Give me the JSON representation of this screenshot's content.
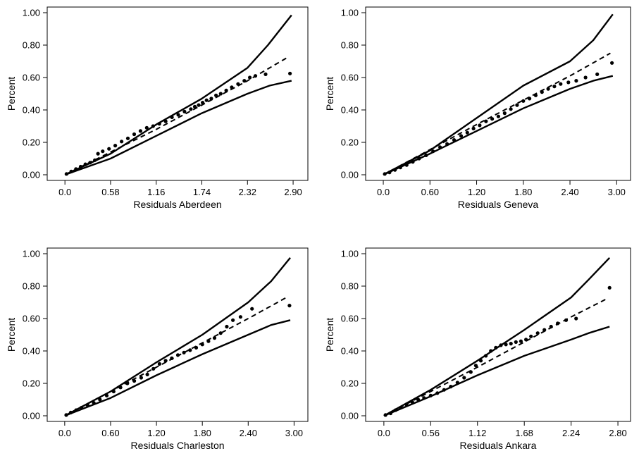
{
  "colors": {
    "ink": "#000000",
    "background": "#ffffff"
  },
  "chart_data": [
    {
      "type": "scatter",
      "xlabel": "Residuals Aberdeen",
      "ylabel": "Percent",
      "xlim": [
        -0.1,
        2.98
      ],
      "ylim": [
        0,
        1
      ],
      "xticks": [
        "0.0",
        "0.58",
        "1.16",
        "1.74",
        "2.32",
        "2.90"
      ],
      "yticks": [
        "0.00",
        "0.20",
        "0.40",
        "0.60",
        "0.80",
        "1.00"
      ],
      "upper_band": {
        "x": [
          0,
          0.58,
          1.16,
          1.74,
          2.32,
          2.58,
          2.88
        ],
        "y": [
          0,
          0.13,
          0.31,
          0.47,
          0.66,
          0.8,
          0.985
        ]
      },
      "lower_band": {
        "x": [
          0,
          0.58,
          1.16,
          1.74,
          2.32,
          2.6,
          2.88
        ],
        "y": [
          0,
          0.1,
          0.24,
          0.38,
          0.5,
          0.55,
          0.58
        ]
      },
      "fit_line": {
        "x": [
          0,
          1.16,
          2.32,
          2.85
        ],
        "y": [
          0,
          0.28,
          0.58,
          0.73
        ]
      },
      "points": {
        "x": [
          0.02,
          0.08,
          0.14,
          0.2,
          0.26,
          0.32,
          0.38,
          0.42,
          0.48,
          0.56,
          0.64,
          0.72,
          0.8,
          0.88,
          0.96,
          1.04,
          1.12,
          1.2,
          1.28,
          1.36,
          1.44,
          1.52,
          1.6,
          1.65,
          1.7,
          1.75,
          1.8,
          1.86,
          1.92,
          1.98,
          2.05,
          2.12,
          2.2,
          2.28,
          2.35,
          2.42,
          2.55,
          2.86
        ],
        "y": [
          0.005,
          0.02,
          0.035,
          0.05,
          0.065,
          0.075,
          0.09,
          0.13,
          0.145,
          0.16,
          0.18,
          0.205,
          0.225,
          0.25,
          0.27,
          0.29,
          0.3,
          0.315,
          0.33,
          0.355,
          0.37,
          0.39,
          0.405,
          0.42,
          0.43,
          0.445,
          0.46,
          0.47,
          0.49,
          0.5,
          0.52,
          0.54,
          0.56,
          0.58,
          0.6,
          0.61,
          0.62,
          0.625
        ]
      }
    },
    {
      "type": "scatter",
      "xlabel": "Residuals Geneva",
      "ylabel": "Percent",
      "xlim": [
        -0.1,
        3.07
      ],
      "ylim": [
        0,
        1
      ],
      "xticks": [
        "0.0",
        "0.60",
        "1.20",
        "1.80",
        "2.40",
        "3.00"
      ],
      "yticks": [
        "0.00",
        "0.20",
        "0.40",
        "0.60",
        "0.80",
        "1.00"
      ],
      "upper_band": {
        "x": [
          0,
          0.6,
          1.2,
          1.8,
          2.4,
          2.7,
          2.95
        ],
        "y": [
          0,
          0.15,
          0.35,
          0.55,
          0.7,
          0.83,
          0.99
        ]
      },
      "lower_band": {
        "x": [
          0,
          0.6,
          1.2,
          1.8,
          2.4,
          2.7,
          2.95
        ],
        "y": [
          0,
          0.13,
          0.27,
          0.41,
          0.53,
          0.58,
          0.61
        ]
      },
      "fit_line": {
        "x": [
          0,
          1.2,
          2.4,
          2.92
        ],
        "y": [
          0,
          0.31,
          0.61,
          0.75
        ]
      },
      "points": {
        "x": [
          0.02,
          0.08,
          0.15,
          0.22,
          0.3,
          0.38,
          0.46,
          0.55,
          0.64,
          0.73,
          0.82,
          0.91,
          1.0,
          1.08,
          1.16,
          1.24,
          1.32,
          1.4,
          1.48,
          1.56,
          1.64,
          1.72,
          1.8,
          1.88,
          1.96,
          2.04,
          2.12,
          2.2,
          2.28,
          2.38,
          2.48,
          2.6,
          2.75,
          2.94
        ],
        "y": [
          0.005,
          0.015,
          0.03,
          0.045,
          0.06,
          0.08,
          0.1,
          0.12,
          0.145,
          0.17,
          0.19,
          0.215,
          0.24,
          0.26,
          0.285,
          0.305,
          0.33,
          0.345,
          0.36,
          0.38,
          0.405,
          0.43,
          0.455,
          0.47,
          0.49,
          0.51,
          0.53,
          0.545,
          0.56,
          0.57,
          0.58,
          0.6,
          0.62,
          0.69
        ]
      }
    },
    {
      "type": "scatter",
      "xlabel": "Residuals Charleston",
      "ylabel": "Percent",
      "xlim": [
        -0.1,
        3.07
      ],
      "ylim": [
        0,
        1
      ],
      "xticks": [
        "0.0",
        "0.60",
        "1.20",
        "1.80",
        "2.40",
        "3.00"
      ],
      "yticks": [
        "0.00",
        "0.20",
        "0.40",
        "0.60",
        "0.80",
        "1.00"
      ],
      "upper_band": {
        "x": [
          0,
          0.6,
          1.2,
          1.8,
          2.4,
          2.7,
          2.95
        ],
        "y": [
          0,
          0.15,
          0.33,
          0.5,
          0.7,
          0.83,
          0.975
        ]
      },
      "lower_band": {
        "x": [
          0,
          0.6,
          1.2,
          1.8,
          2.4,
          2.7,
          2.95
        ],
        "y": [
          0,
          0.11,
          0.25,
          0.38,
          0.5,
          0.56,
          0.59
        ]
      },
      "fit_line": {
        "x": [
          0,
          1.2,
          2.4,
          2.9
        ],
        "y": [
          0,
          0.3,
          0.6,
          0.73
        ]
      },
      "points": {
        "x": [
          0.02,
          0.08,
          0.15,
          0.22,
          0.3,
          0.38,
          0.46,
          0.55,
          0.64,
          0.73,
          0.82,
          0.91,
          1.0,
          1.08,
          1.16,
          1.24,
          1.32,
          1.4,
          1.48,
          1.56,
          1.64,
          1.72,
          1.8,
          1.88,
          1.96,
          2.04,
          2.12,
          2.2,
          2.3,
          2.45,
          2.94
        ],
        "y": [
          0.005,
          0.02,
          0.035,
          0.05,
          0.065,
          0.08,
          0.1,
          0.125,
          0.15,
          0.175,
          0.2,
          0.215,
          0.235,
          0.255,
          0.29,
          0.32,
          0.34,
          0.355,
          0.375,
          0.39,
          0.405,
          0.42,
          0.44,
          0.46,
          0.48,
          0.51,
          0.55,
          0.59,
          0.61,
          0.66,
          0.68
        ]
      }
    },
    {
      "type": "scatter",
      "xlabel": "Residuals Ankara",
      "ylabel": "Percent",
      "xlim": [
        -0.1,
        2.85
      ],
      "ylim": [
        0,
        1
      ],
      "xticks": [
        "0.0",
        "0.56",
        "1.12",
        "1.68",
        "2.24",
        "2.80"
      ],
      "yticks": [
        "0.00",
        "0.20",
        "0.40",
        "0.60",
        "0.80",
        "1.00"
      ],
      "upper_band": {
        "x": [
          0,
          0.56,
          1.12,
          1.68,
          2.24,
          2.45,
          2.7
        ],
        "y": [
          0,
          0.16,
          0.34,
          0.53,
          0.73,
          0.84,
          0.975
        ]
      },
      "lower_band": {
        "x": [
          0,
          0.56,
          1.12,
          1.68,
          2.24,
          2.45,
          2.7
        ],
        "y": [
          0,
          0.12,
          0.25,
          0.37,
          0.47,
          0.51,
          0.55
        ]
      },
      "fit_line": {
        "x": [
          0,
          1.12,
          2.24,
          2.66
        ],
        "y": [
          0,
          0.3,
          0.61,
          0.72
        ]
      },
      "points": {
        "x": [
          0.02,
          0.08,
          0.14,
          0.2,
          0.27,
          0.34,
          0.41,
          0.48,
          0.56,
          0.64,
          0.72,
          0.8,
          0.88,
          0.96,
          1.04,
          1.1,
          1.16,
          1.22,
          1.28,
          1.34,
          1.4,
          1.46,
          1.52,
          1.58,
          1.64,
          1.7,
          1.76,
          1.84,
          1.92,
          2.0,
          2.08,
          2.18,
          2.3,
          2.7
        ],
        "y": [
          0.005,
          0.015,
          0.035,
          0.05,
          0.07,
          0.085,
          0.1,
          0.11,
          0.125,
          0.14,
          0.16,
          0.18,
          0.205,
          0.235,
          0.27,
          0.31,
          0.34,
          0.37,
          0.4,
          0.42,
          0.435,
          0.44,
          0.445,
          0.455,
          0.46,
          0.47,
          0.49,
          0.51,
          0.53,
          0.55,
          0.57,
          0.59,
          0.6,
          0.79
        ]
      }
    }
  ]
}
